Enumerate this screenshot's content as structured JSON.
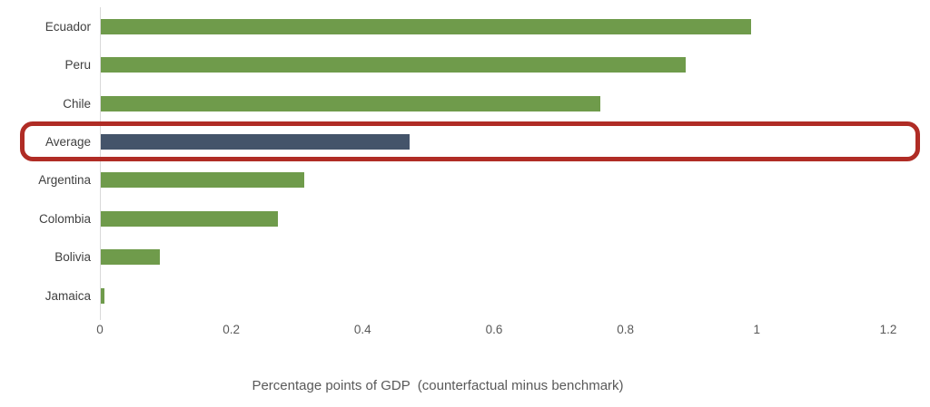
{
  "chart_data": {
    "type": "bar",
    "orientation": "horizontal",
    "title": "",
    "categories": [
      "Ecuador",
      "Peru",
      "Chile",
      "Average",
      "Argentina",
      "Colombia",
      "Bolivia",
      "Jamaica"
    ],
    "values": [
      0.99,
      0.89,
      0.76,
      0.47,
      0.31,
      0.27,
      0.09,
      0.005
    ],
    "xlabel": "Percentage points of GDP  (counterfactual minus benchmark)",
    "ylabel": "",
    "xlim": [
      0,
      1.2
    ],
    "x_ticks": [
      0,
      0.2,
      0.4,
      0.6,
      0.8,
      1,
      1.2
    ],
    "x_tick_labels": [
      "0",
      "0.2",
      "0.4",
      "0.6",
      "0.8",
      "1",
      "1.2"
    ],
    "grid": false,
    "legend": false,
    "bar_color": "#6f9b4b",
    "highlight_category": "Average",
    "highlight_bar_color": "#44546a",
    "highlight_box_color": "#b02c25",
    "axis_line_color": "#d9d9d9",
    "category_label_color": "#3f3f3f",
    "tick_label_color": "#595959",
    "axis_title_color": "#595959"
  }
}
